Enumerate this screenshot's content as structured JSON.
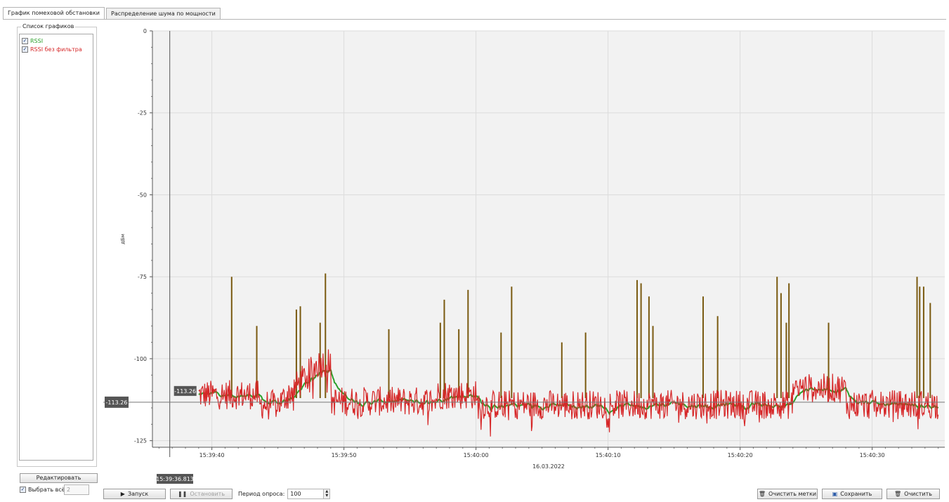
{
  "tabs": [
    {
      "label": "График помеховой обстановки",
      "active": true
    },
    {
      "label": "Распределение шума по мощности",
      "active": false
    }
  ],
  "sidebar": {
    "group_title": "Список графиков",
    "items": [
      {
        "label": "RSSI",
        "checked": true,
        "color": "#2ca02c"
      },
      {
        "label": "RSSI без фильтра",
        "checked": true,
        "color": "#d62728"
      }
    ],
    "edit_label": "Редактировать",
    "select_all_label": "Выбрать всё",
    "select_all_checked": true,
    "count_value": "2"
  },
  "toolbar": {
    "start_label": "Запуск",
    "stop_label": "Остановить",
    "period_label": "Период опроса:",
    "period_value": "100",
    "clear_marks_label": "Очистить метки",
    "save_label": "Сохранить",
    "clear_label": "Очистить"
  },
  "chart_data": {
    "type": "line",
    "ylabel": "дБм",
    "xlabel": "16.03.2022",
    "ylim": [
      -127,
      0
    ],
    "x_range": [
      "15:39:35.5",
      "15:40:35.5"
    ],
    "y_ticks": [
      "0",
      "-25",
      "-50",
      "-75",
      "-100",
      "-125"
    ],
    "x_ticks": [
      "15:39:40",
      "15:39:50",
      "15:40:00",
      "15:40:10",
      "15:40:20",
      "15:40:30"
    ],
    "grid": true,
    "cursor": {
      "x_label": "15:39:36.813",
      "y_label": "-113.26",
      "point_label": "-113.26"
    },
    "series": [
      {
        "name": "RSSI",
        "color": "#2ca02c"
      },
      {
        "name": "RSSI без фильтра",
        "color": "#d62728"
      }
    ],
    "spikes": [
      {
        "t": "15:39:41.5",
        "y": -75
      },
      {
        "t": "15:39:43.4",
        "y": -90
      },
      {
        "t": "15:39:46.4",
        "y": -85
      },
      {
        "t": "15:39:46.7",
        "y": -84
      },
      {
        "t": "15:39:48.2",
        "y": -89
      },
      {
        "t": "15:39:48.6",
        "y": -74
      },
      {
        "t": "15:39:53.4",
        "y": -91
      },
      {
        "t": "15:39:57.3",
        "y": -89
      },
      {
        "t": "15:39:57.6",
        "y": -82
      },
      {
        "t": "15:39:58.7",
        "y": -91
      },
      {
        "t": "15:39:59.4",
        "y": -79
      },
      {
        "t": "15:40:01.9",
        "y": -92
      },
      {
        "t": "15:40:02.7",
        "y": -78
      },
      {
        "t": "15:40:06.5",
        "y": -95
      },
      {
        "t": "15:40:08.3",
        "y": -92
      },
      {
        "t": "15:40:12.2",
        "y": -76
      },
      {
        "t": "15:40:12.5",
        "y": -77
      },
      {
        "t": "15:40:13.1",
        "y": -81
      },
      {
        "t": "15:40:13.4",
        "y": -90
      },
      {
        "t": "15:40:17.2",
        "y": -81
      },
      {
        "t": "15:40:18.3",
        "y": -87
      },
      {
        "t": "15:40:22.8",
        "y": -75
      },
      {
        "t": "15:40:23.1",
        "y": -80
      },
      {
        "t": "15:40:23.5",
        "y": -89
      },
      {
        "t": "15:40:23.7",
        "y": -77
      },
      {
        "t": "15:40:26.7",
        "y": -89
      },
      {
        "t": "15:40:33.4",
        "y": -75
      },
      {
        "t": "15:40:33.6",
        "y": -78
      },
      {
        "t": "15:40:33.9",
        "y": -78
      },
      {
        "t": "15:40:34.4",
        "y": -83
      }
    ],
    "baseline_segments": [
      {
        "t0": "15:39:39.0",
        "t1": "15:39:43.5",
        "y": -111
      },
      {
        "t0": "15:39:43.5",
        "t1": "15:39:45.0",
        "y": -114
      },
      {
        "t0": "15:39:45.0",
        "t1": "15:39:49.0",
        "y": -105
      },
      {
        "t0": "15:39:49.0",
        "t1": "15:39:57.0",
        "y": -113
      },
      {
        "t0": "15:39:57.0",
        "t1": "15:40:00.0",
        "y": -111
      },
      {
        "t0": "15:40:00.0",
        "t1": "15:40:24.0",
        "y": -114
      },
      {
        "t0": "15:40:24.0",
        "t1": "15:40:28.0",
        "y": -109
      },
      {
        "t0": "15:40:28.0",
        "t1": "15:40:35.0",
        "y": -114
      }
    ]
  }
}
